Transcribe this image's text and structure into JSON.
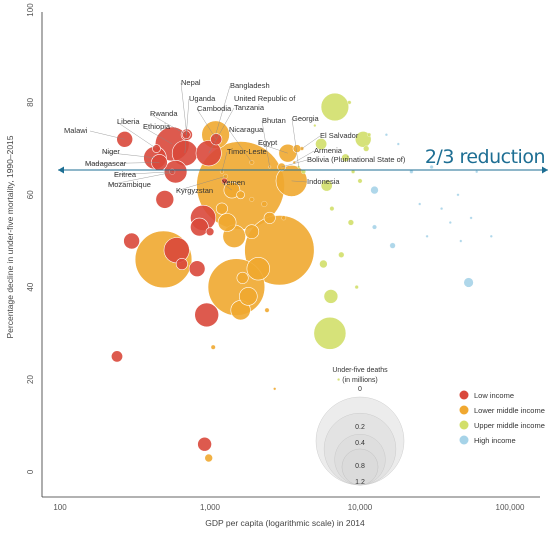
{
  "chart_data": {
    "type": "scatter",
    "xlabel": "GDP per capita (logarithmic scale) in 2014",
    "ylabel": "Percentage decline in under-five mortality, 1990–2015",
    "x_scale": "log",
    "xlim": [
      100,
      100000
    ],
    "ylim": [
      -5,
      100
    ],
    "x_ticks": [
      100,
      1000,
      10000,
      100000
    ],
    "x_tick_labels": [
      "100",
      "1,000",
      "10,000",
      "100,000"
    ],
    "y_ticks": [
      0,
      20,
      40,
      60,
      80,
      100
    ],
    "y_tick_labels": [
      "0",
      "20",
      "40",
      "60",
      "80",
      "100"
    ],
    "reference_line": {
      "y": 66.7,
      "label": "2/3 reduction",
      "color": "#1d6e93"
    },
    "colors": {
      "low": "#d9483b",
      "lower_middle": "#f0a830",
      "upper_middle": "#d2df6a",
      "high": "#a6d3e8"
    },
    "legend": {
      "placement": "bottom-right",
      "items": [
        {
          "key": "low",
          "label": "Low income"
        },
        {
          "key": "lower_middle",
          "label": "Lower middle income"
        },
        {
          "key": "upper_middle",
          "label": "Upper middle income"
        },
        {
          "key": "high",
          "label": "High income"
        }
      ]
    },
    "size_legend": {
      "title_lines": [
        "Under-five deaths",
        "(in millions)"
      ],
      "values": [
        1.2,
        0.8,
        0.4,
        0.2,
        0
      ],
      "labels": [
        "1.2",
        "0.8",
        "0.4",
        "0.2",
        "0"
      ]
    },
    "points": [
      {
        "name": "Malawi",
        "x": 270,
        "y": 72,
        "d": 0.04,
        "g": "low"
      },
      {
        "name": "Liberia",
        "x": 440,
        "y": 70,
        "d": 0.01,
        "g": "low"
      },
      {
        "name": "Ethiopia",
        "x": 560,
        "y": 71,
        "d": 0.18,
        "g": "low"
      },
      {
        "name": "Rwanda",
        "x": 695,
        "y": 73,
        "d": 0.01,
        "g": "low"
      },
      {
        "name": "Uganda",
        "x": 680,
        "y": 69,
        "d": 0.1,
        "g": "low"
      },
      {
        "name": "Nepal",
        "x": 700,
        "y": 73,
        "d": 0.02,
        "g": "low"
      },
      {
        "name": "Cambodia",
        "x": 1100,
        "y": 72,
        "d": 0.02,
        "g": "low"
      },
      {
        "name": "Bangladesh",
        "x": 1090,
        "y": 73,
        "d": 0.12,
        "g": "lower_middle"
      },
      {
        "name": "Niger",
        "x": 430,
        "y": 68,
        "d": 0.08,
        "g": "low"
      },
      {
        "name": "Madagascar",
        "x": 460,
        "y": 67,
        "d": 0.04,
        "g": "low"
      },
      {
        "name": "Eritrea",
        "x": 560,
        "y": 65,
        "d": 0.005,
        "g": "low"
      },
      {
        "name": "Mozambique",
        "x": 590,
        "y": 65,
        "d": 0.08,
        "g": "low"
      },
      {
        "name": "Kyrgyzstan",
        "x": 1270,
        "y": 64,
        "d": 0.003,
        "g": "lower_middle"
      },
      {
        "name": "Yemen",
        "x": 1400,
        "y": 61,
        "d": 0.04,
        "g": "lower_middle"
      },
      {
        "name": "Nicaragua",
        "x": 1900,
        "y": 67,
        "d": 0.003,
        "g": "lower_middle"
      },
      {
        "name": "United Republic of Tanzania",
        "x": 980,
        "y": 69,
        "d": 0.1,
        "g": "low"
      },
      {
        "name": "Timor-Leste",
        "x": 1200,
        "y": 65,
        "d": 0.002,
        "g": "lower_middle"
      },
      {
        "name": "Bhutan",
        "x": 2500,
        "y": 66,
        "d": 0.001,
        "g": "lower_middle"
      },
      {
        "name": "Georgia",
        "x": 3900,
        "y": 66,
        "d": 0.001,
        "g": "upper_middle"
      },
      {
        "name": "Egypt",
        "x": 3300,
        "y": 69,
        "d": 0.05,
        "g": "lower_middle"
      },
      {
        "name": "El Salvador",
        "x": 4100,
        "y": 70,
        "d": 0.002,
        "g": "lower_middle"
      },
      {
        "name": "Armenia",
        "x": 3650,
        "y": 67,
        "d": 0.001,
        "g": "lower_middle"
      },
      {
        "name": "Bolivia (Plurinational State of)",
        "x": 3000,
        "y": 66,
        "d": 0.01,
        "g": "lower_middle"
      },
      {
        "name": "Indonesia",
        "x": 3500,
        "y": 63,
        "d": 0.15,
        "g": "lower_middle"
      },
      {
        "name": "",
        "x": 1600,
        "y": 62,
        "d": 1.2,
        "g": "lower_middle"
      },
      {
        "name": "",
        "x": 2900,
        "y": 48,
        "d": 0.75,
        "g": "lower_middle"
      },
      {
        "name": "",
        "x": 490,
        "y": 46,
        "d": 0.5,
        "g": "lower_middle"
      },
      {
        "name": "",
        "x": 1500,
        "y": 40,
        "d": 0.5,
        "g": "lower_middle"
      },
      {
        "name": "",
        "x": 6800,
        "y": 79,
        "d": 0.12,
        "g": "upper_middle"
      },
      {
        "name": "",
        "x": 6300,
        "y": 30,
        "d": 0.16,
        "g": "upper_middle"
      },
      {
        "name": "",
        "x": 10500,
        "y": 72,
        "d": 0.04,
        "g": "upper_middle"
      },
      {
        "name": "",
        "x": 5500,
        "y": 71,
        "d": 0.02,
        "g": "upper_middle"
      },
      {
        "name": "",
        "x": 6400,
        "y": 38,
        "d": 0.03,
        "g": "upper_middle"
      },
      {
        "name": "",
        "x": 6000,
        "y": 62,
        "d": 0.02,
        "g": "upper_middle"
      },
      {
        "name": "",
        "x": 8000,
        "y": 68,
        "d": 0.01,
        "g": "upper_middle"
      },
      {
        "name": "",
        "x": 5700,
        "y": 45,
        "d": 0.01,
        "g": "upper_middle"
      },
      {
        "name": "",
        "x": 8700,
        "y": 54,
        "d": 0.005,
        "g": "upper_middle"
      },
      {
        "name": "",
        "x": 7500,
        "y": 47,
        "d": 0.005,
        "g": "upper_middle"
      },
      {
        "name": "",
        "x": 11000,
        "y": 70,
        "d": 0.005,
        "g": "upper_middle"
      },
      {
        "name": "",
        "x": 12500,
        "y": 61,
        "d": 0.01,
        "g": "high"
      },
      {
        "name": "",
        "x": 16500,
        "y": 49,
        "d": 0.005,
        "g": "high"
      },
      {
        "name": "",
        "x": 53000,
        "y": 41,
        "d": 0.015,
        "g": "high"
      },
      {
        "name": "",
        "x": 12500,
        "y": 53,
        "d": 0.003,
        "g": "high"
      },
      {
        "name": "",
        "x": 22000,
        "y": 65,
        "d": 0.002,
        "g": "high"
      },
      {
        "name": "",
        "x": 30000,
        "y": 66,
        "d": 0.002,
        "g": "high"
      },
      {
        "name": "",
        "x": 45000,
        "y": 60,
        "d": 0.001,
        "g": "high"
      },
      {
        "name": "",
        "x": 40000,
        "y": 54,
        "d": 0.001,
        "g": "high"
      },
      {
        "name": "",
        "x": 18000,
        "y": 71,
        "d": 0.001,
        "g": "high"
      },
      {
        "name": "",
        "x": 15000,
        "y": 73,
        "d": 0.001,
        "g": "high"
      },
      {
        "name": "",
        "x": 55000,
        "y": 55,
        "d": 0.001,
        "g": "high"
      },
      {
        "name": "",
        "x": 47000,
        "y": 50,
        "d": 0.001,
        "g": "high"
      },
      {
        "name": "",
        "x": 75000,
        "y": 51,
        "d": 0.001,
        "g": "high"
      },
      {
        "name": "",
        "x": 35000,
        "y": 57,
        "d": 0.001,
        "g": "high"
      },
      {
        "name": "",
        "x": 25000,
        "y": 58,
        "d": 0.001,
        "g": "high"
      },
      {
        "name": "",
        "x": 60000,
        "y": 65,
        "d": 0.001,
        "g": "high"
      },
      {
        "name": "",
        "x": 28000,
        "y": 51,
        "d": 0.001,
        "g": "high"
      },
      {
        "name": "",
        "x": 900,
        "y": 55,
        "d": 0.1,
        "g": "low"
      },
      {
        "name": "",
        "x": 850,
        "y": 53,
        "d": 0.05,
        "g": "low"
      },
      {
        "name": "",
        "x": 600,
        "y": 48,
        "d": 0.1,
        "g": "low"
      },
      {
        "name": "",
        "x": 820,
        "y": 44,
        "d": 0.04,
        "g": "low"
      },
      {
        "name": "",
        "x": 300,
        "y": 50,
        "d": 0.04,
        "g": "low"
      },
      {
        "name": "",
        "x": 500,
        "y": 59,
        "d": 0.05,
        "g": "low"
      },
      {
        "name": "",
        "x": 950,
        "y": 34,
        "d": 0.09,
        "g": "low"
      },
      {
        "name": "",
        "x": 240,
        "y": 25,
        "d": 0.02,
        "g": "low"
      },
      {
        "name": "",
        "x": 920,
        "y": 6,
        "d": 0.03,
        "g": "low"
      },
      {
        "name": "",
        "x": 980,
        "y": 3,
        "d": 0.01,
        "g": "lower_middle"
      },
      {
        "name": "",
        "x": 650,
        "y": 45,
        "d": 0.02,
        "g": "low"
      },
      {
        "name": "",
        "x": 1000,
        "y": 52,
        "d": 0.01,
        "g": "low"
      },
      {
        "name": "",
        "x": 1250,
        "y": 63,
        "d": 0.005,
        "g": "low"
      },
      {
        "name": "",
        "x": 1300,
        "y": 54,
        "d": 0.05,
        "g": "lower_middle"
      },
      {
        "name": "",
        "x": 1450,
        "y": 51,
        "d": 0.08,
        "g": "lower_middle"
      },
      {
        "name": "",
        "x": 1650,
        "y": 42,
        "d": 0.02,
        "g": "lower_middle"
      },
      {
        "name": "",
        "x": 1800,
        "y": 38,
        "d": 0.05,
        "g": "lower_middle"
      },
      {
        "name": "",
        "x": 1600,
        "y": 35,
        "d": 0.06,
        "g": "lower_middle"
      },
      {
        "name": "",
        "x": 2100,
        "y": 44,
        "d": 0.08,
        "g": "lower_middle"
      },
      {
        "name": "",
        "x": 1900,
        "y": 52,
        "d": 0.03,
        "g": "lower_middle"
      },
      {
        "name": "",
        "x": 1200,
        "y": 57,
        "d": 0.02,
        "g": "lower_middle"
      },
      {
        "name": "",
        "x": 2500,
        "y": 55,
        "d": 0.02,
        "g": "lower_middle"
      },
      {
        "name": "",
        "x": 3800,
        "y": 70,
        "d": 0.01,
        "g": "lower_middle"
      },
      {
        "name": "",
        "x": 2300,
        "y": 58,
        "d": 0.005,
        "g": "lower_middle"
      },
      {
        "name": "",
        "x": 2400,
        "y": 35,
        "d": 0.003,
        "g": "lower_middle"
      },
      {
        "name": "",
        "x": 1900,
        "y": 59,
        "d": 0.003,
        "g": "lower_middle"
      },
      {
        "name": "",
        "x": 3100,
        "y": 55,
        "d": 0.003,
        "g": "lower_middle"
      },
      {
        "name": "",
        "x": 1050,
        "y": 27,
        "d": 0.003,
        "g": "lower_middle"
      },
      {
        "name": "",
        "x": 2700,
        "y": 18,
        "d": 0.001,
        "g": "lower_middle"
      },
      {
        "name": "",
        "x": 1600,
        "y": 60,
        "d": 0.01,
        "g": "lower_middle"
      },
      {
        "name": "",
        "x": 4200,
        "y": 65,
        "d": 0.003,
        "g": "upper_middle"
      },
      {
        "name": "",
        "x": 5000,
        "y": 75,
        "d": 0.001,
        "g": "upper_middle"
      },
      {
        "name": "",
        "x": 6500,
        "y": 57,
        "d": 0.003,
        "g": "upper_middle"
      },
      {
        "name": "",
        "x": 9500,
        "y": 40,
        "d": 0.002,
        "g": "upper_middle"
      },
      {
        "name": "",
        "x": 7200,
        "y": 20,
        "d": 0.001,
        "g": "upper_middle"
      },
      {
        "name": "",
        "x": 10000,
        "y": 63,
        "d": 0.003,
        "g": "upper_middle"
      },
      {
        "name": "",
        "x": 9000,
        "y": 65,
        "d": 0.002,
        "g": "upper_middle"
      },
      {
        "name": "",
        "x": 11500,
        "y": 73,
        "d": 0.002,
        "g": "upper_middle"
      },
      {
        "name": "",
        "x": 8500,
        "y": 80,
        "d": 0.002,
        "g": "upper_middle"
      }
    ]
  }
}
